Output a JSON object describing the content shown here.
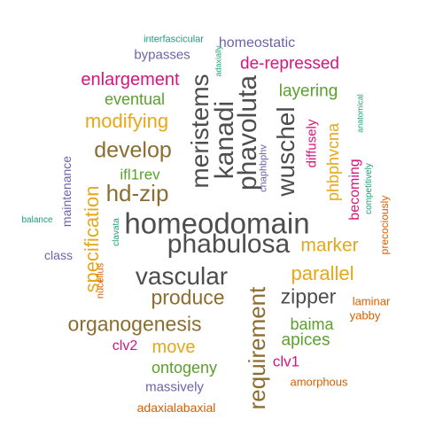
{
  "words": [
    {
      "text": "homeodomain",
      "color": "#4d4d4d"
    },
    {
      "text": "phabulosa",
      "color": "#4d4d4d"
    },
    {
      "text": "vascular",
      "color": "#4d4d4d"
    },
    {
      "text": "meristems",
      "color": "#4d4d4d"
    },
    {
      "text": "kanadi",
      "color": "#4d4d4d"
    },
    {
      "text": "phavoluta",
      "color": "#4d4d4d"
    },
    {
      "text": "wuschel",
      "color": "#4d4d4d"
    },
    {
      "text": "requirement",
      "color": "#8c6d31"
    },
    {
      "text": "hd-zip",
      "color": "#8c6d31"
    },
    {
      "text": "develop",
      "color": "#8c6d31"
    },
    {
      "text": "produce",
      "color": "#8c6d31"
    },
    {
      "text": "organogenesis",
      "color": "#8c6d31"
    },
    {
      "text": "zipper",
      "color": "#4d4d4d"
    },
    {
      "text": "specification",
      "color": "#e6a817"
    },
    {
      "text": "modifying",
      "color": "#e6a817"
    },
    {
      "text": "parallel",
      "color": "#e6a817"
    },
    {
      "text": "marker",
      "color": "#e6a817"
    },
    {
      "text": "phbphvcna",
      "color": "#e6a817"
    },
    {
      "text": "move",
      "color": "#e6a817"
    },
    {
      "text": "enlargement",
      "color": "#d6157e"
    },
    {
      "text": "de-repressed",
      "color": "#d6157e"
    },
    {
      "text": "becoming",
      "color": "#d6157e"
    },
    {
      "text": "diffusely",
      "color": "#d6157e"
    },
    {
      "text": "clv2",
      "color": "#d6157e"
    },
    {
      "text": "clv1",
      "color": "#d6157e"
    },
    {
      "text": "eventual",
      "color": "#5aa02c"
    },
    {
      "text": "layering",
      "color": "#5aa02c"
    },
    {
      "text": "ifl1rev",
      "color": "#5aa02c"
    },
    {
      "text": "baima",
      "color": "#5aa02c"
    },
    {
      "text": "apices",
      "color": "#5aa02c"
    },
    {
      "text": "ontogeny",
      "color": "#5aa02c"
    },
    {
      "text": "homeostatic",
      "color": "#6b63a8"
    },
    {
      "text": "bypasses",
      "color": "#6b63a8"
    },
    {
      "text": "maintenance",
      "color": "#6b63a8"
    },
    {
      "text": "class",
      "color": "#6b63a8"
    },
    {
      "text": "cnaphbphv",
      "color": "#6b63a8"
    },
    {
      "text": "massively",
      "color": "#6b63a8"
    },
    {
      "text": "interfascicular",
      "color": "#1b9e77"
    },
    {
      "text": "adaxially",
      "color": "#1b9e77"
    },
    {
      "text": "anatomical",
      "color": "#1b9e77"
    },
    {
      "text": "competitively",
      "color": "#1b9e77"
    },
    {
      "text": "balance",
      "color": "#1b9e77"
    },
    {
      "text": "clavata",
      "color": "#1b9e77"
    },
    {
      "text": "precociously",
      "color": "#d95f02"
    },
    {
      "text": "nucellus",
      "color": "#d95f02"
    },
    {
      "text": "laminar",
      "color": "#d95f02"
    },
    {
      "text": "yabby",
      "color": "#d95f02"
    },
    {
      "text": "amorphous",
      "color": "#d95f02"
    },
    {
      "text": "adaxialabaxial",
      "color": "#d95f02"
    }
  ]
}
